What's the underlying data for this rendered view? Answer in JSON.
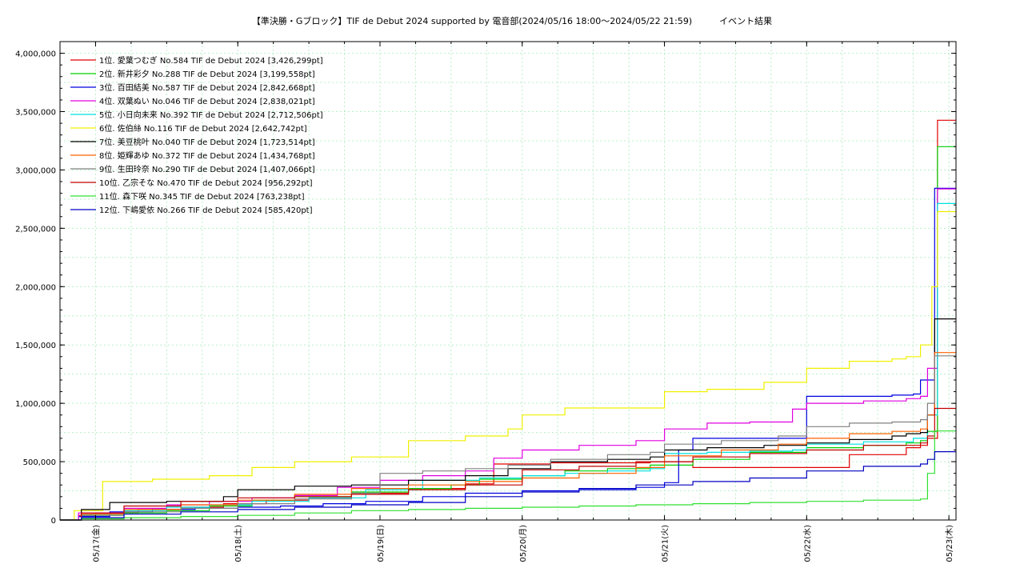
{
  "chart_data": {
    "type": "line",
    "title": "【準決勝・Gブロック】TIF de Debut 2024 supported by 電音部(2024/05/16 18:00〜2024/05/22 21:59)",
    "subtitle": "イベント結果",
    "xlabel": "",
    "ylabel": "",
    "xlim": [
      -0.25,
      6.05
    ],
    "ylim": [
      0,
      4100000
    ],
    "y_ticks": [
      0,
      500000,
      1000000,
      1500000,
      2000000,
      2500000,
      3000000,
      3500000,
      4000000
    ],
    "y_tick_labels": [
      "0",
      "500,000",
      "1,000,000",
      "1,500,000",
      "2,000,000",
      "2,500,000",
      "3,000,000",
      "3,500,000",
      "4,000,000"
    ],
    "x_ticks": [
      0,
      1,
      2,
      3,
      4,
      5,
      6
    ],
    "x_tick_labels": [
      "05/17(金)",
      "05/18(土)",
      "05/19(日)",
      "05/20(月)",
      "05/21(火)",
      "05/22(水)",
      "05/23(木)"
    ],
    "grid": true,
    "legend_position": "top-left",
    "series": [
      {
        "name": "1位. 愛葉つむぎ No.584 TIF de Debut 2024 [3,426,299pt]",
        "color": "#e00000",
        "x": [
          -0.25,
          -0.12,
          0.0,
          0.3,
          0.6,
          0.9,
          1.2,
          1.5,
          1.8,
          2.2,
          2.6,
          2.8,
          3.2,
          3.6,
          3.9,
          4.2,
          4.6,
          4.9,
          5.3,
          5.7,
          5.8,
          5.85,
          5.92,
          6.05
        ],
        "y": [
          0,
          40000,
          60000,
          90000,
          110000,
          140000,
          170000,
          190000,
          230000,
          270000,
          310000,
          480000,
          490000,
          490000,
          500000,
          450000,
          450000,
          450000,
          560000,
          620000,
          640000,
          700000,
          3426299,
          3426299
        ]
      },
      {
        "name": "2位. 新井彩夕 No.288 TIF de Debut 2024 [3,199,558pt]",
        "color": "#00d000",
        "x": [
          -0.25,
          -0.1,
          0.2,
          0.5,
          0.8,
          1.1,
          1.4,
          1.8,
          2.2,
          2.5,
          2.7,
          3.0,
          3.3,
          3.6,
          3.9,
          4.2,
          4.6,
          5.0,
          5.4,
          5.7,
          5.8,
          5.85,
          5.92,
          6.05
        ],
        "y": [
          0,
          40000,
          60000,
          80000,
          120000,
          170000,
          200000,
          240000,
          270000,
          300000,
          350000,
          380000,
          420000,
          440000,
          470000,
          520000,
          580000,
          620000,
          640000,
          660000,
          680000,
          760000,
          3199558,
          3199558
        ]
      },
      {
        "name": "3位. 百田結美 No.587 TIF de Debut 2024 [2,842,668pt]",
        "color": "#0000e0",
        "x": [
          -0.25,
          -0.12,
          0.1,
          0.4,
          0.7,
          1.0,
          1.3,
          1.6,
          1.9,
          2.3,
          2.6,
          3.0,
          3.4,
          3.8,
          4.0,
          4.1,
          4.2,
          4.5,
          4.9,
          5.0,
          5.3,
          5.6,
          5.75,
          5.8,
          5.9,
          6.05
        ],
        "y": [
          0,
          30000,
          70000,
          90000,
          100000,
          110000,
          120000,
          140000,
          160000,
          200000,
          230000,
          250000,
          260000,
          280000,
          320000,
          600000,
          700000,
          700000,
          700000,
          1060000,
          1060000,
          1070000,
          1080000,
          1200000,
          2842668,
          2842668
        ]
      },
      {
        "name": "4位. 双葉ぬい No.046 TIF de Debut 2024 [2,838,021pt]",
        "color": "#e000e0",
        "x": [
          -0.25,
          -0.12,
          0.2,
          0.5,
          0.8,
          1.1,
          1.4,
          1.7,
          2.0,
          2.3,
          2.6,
          2.8,
          3.0,
          3.4,
          3.8,
          4.0,
          4.3,
          4.6,
          4.9,
          5.0,
          5.4,
          5.7,
          5.8,
          5.85,
          5.92,
          6.05
        ],
        "y": [
          0,
          60000,
          100000,
          130000,
          160000,
          190000,
          210000,
          280000,
          340000,
          380000,
          420000,
          530000,
          600000,
          640000,
          680000,
          780000,
          830000,
          840000,
          950000,
          1000000,
          1020000,
          1040000,
          1060000,
          1300000,
          2838021,
          2838021
        ]
      },
      {
        "name": "5位. 小日向未来 No.392 TIF de Debut 2024 [2,712,506pt]",
        "color": "#00e0e0",
        "x": [
          -0.25,
          -0.1,
          0.2,
          0.5,
          0.8,
          1.1,
          1.5,
          1.9,
          2.3,
          2.7,
          3.0,
          3.3,
          3.6,
          3.9,
          4.0,
          4.3,
          4.6,
          4.9,
          5.0,
          5.4,
          5.75,
          5.85,
          5.92,
          6.05
        ],
        "y": [
          0,
          50000,
          80000,
          110000,
          130000,
          160000,
          190000,
          260000,
          340000,
          360000,
          380000,
          400000,
          420000,
          440000,
          570000,
          580000,
          590000,
          600000,
          650000,
          670000,
          700000,
          900000,
          2712506,
          2712506
        ]
      },
      {
        "name": "6位. 佐伯絲 No.116 TIF de Debut 2024 [2,642,742pt]",
        "color": "#f0f000",
        "x": [
          -0.25,
          -0.15,
          0.05,
          0.4,
          0.8,
          1.1,
          1.4,
          1.8,
          2.2,
          2.6,
          2.9,
          3.0,
          3.3,
          3.7,
          4.0,
          4.3,
          4.7,
          5.0,
          5.3,
          5.6,
          5.7,
          5.8,
          5.88,
          5.92,
          6.05
        ],
        "y": [
          0,
          80000,
          330000,
          350000,
          380000,
          450000,
          500000,
          540000,
          680000,
          720000,
          780000,
          900000,
          960000,
          960000,
          1100000,
          1120000,
          1180000,
          1300000,
          1360000,
          1380000,
          1400000,
          1500000,
          2000000,
          2642742,
          2642742
        ]
      },
      {
        "name": "7位. 美豆桃叶 No.040 TIF de Debut 2024 [1,723,514pt]",
        "color": "#000000",
        "x": [
          -0.25,
          -0.1,
          0.1,
          0.5,
          0.9,
          1.0,
          1.4,
          1.8,
          2.2,
          2.6,
          2.9,
          3.2,
          3.6,
          3.9,
          4.0,
          4.3,
          4.7,
          5.0,
          5.3,
          5.6,
          5.7,
          5.8,
          5.85,
          5.9,
          6.05
        ],
        "y": [
          0,
          90000,
          150000,
          160000,
          200000,
          260000,
          290000,
          300000,
          340000,
          380000,
          440000,
          500000,
          520000,
          540000,
          600000,
          620000,
          640000,
          660000,
          690000,
          720000,
          740000,
          750000,
          900000,
          1723514,
          1723514
        ]
      },
      {
        "name": "8位. 姫輝あゆ No.372 TIF de Debut 2024 [1,434,768pt]",
        "color": "#ff6000",
        "x": [
          -0.25,
          -0.1,
          0.2,
          0.6,
          1.0,
          1.4,
          1.8,
          2.2,
          2.6,
          3.0,
          3.4,
          3.8,
          4.0,
          4.4,
          4.8,
          5.0,
          5.3,
          5.6,
          5.8,
          5.85,
          5.9,
          6.05
        ],
        "y": [
          0,
          50000,
          90000,
          130000,
          170000,
          220000,
          270000,
          300000,
          330000,
          360000,
          400000,
          450000,
          550000,
          600000,
          650000,
          700000,
          740000,
          760000,
          780000,
          900000,
          1434768,
          1434768
        ]
      },
      {
        "name": "9位. 生田玲奈 No.290 TIF de Debut 2024 [1,407,066pt]",
        "color": "#808080",
        "x": [
          -0.25,
          -0.1,
          0.2,
          0.6,
          1.0,
          1.4,
          1.8,
          2.0,
          2.3,
          2.6,
          2.9,
          3.2,
          3.6,
          3.9,
          4.0,
          4.4,
          4.8,
          5.0,
          5.3,
          5.6,
          5.8,
          5.85,
          5.9,
          6.05
        ],
        "y": [
          0,
          40000,
          70000,
          100000,
          140000,
          180000,
          230000,
          400000,
          420000,
          440000,
          470000,
          520000,
          560000,
          580000,
          650000,
          680000,
          720000,
          800000,
          830000,
          840000,
          860000,
          1000000,
          1407066,
          1407066
        ]
      },
      {
        "name": "10位. 乙宗そな No.470 TIF de Debut 2024 [956,292pt]",
        "color": "#c00000",
        "x": [
          -0.25,
          -0.1,
          0.2,
          0.6,
          1.0,
          1.4,
          1.8,
          2.2,
          2.6,
          3.0,
          3.4,
          3.8,
          4.2,
          4.6,
          5.0,
          5.4,
          5.8,
          5.85,
          5.9,
          6.05
        ],
        "y": [
          0,
          60000,
          120000,
          160000,
          190000,
          200000,
          220000,
          260000,
          300000,
          430000,
          460000,
          500000,
          540000,
          570000,
          600000,
          640000,
          660000,
          720000,
          956292,
          956292
        ]
      },
      {
        "name": "11位. 森下咲 No.345 TIF de Debut 2024 [763,238pt]",
        "color": "#30e030",
        "x": [
          -0.25,
          -0.1,
          0.2,
          0.6,
          1.0,
          1.4,
          1.8,
          2.2,
          2.6,
          3.0,
          3.4,
          3.8,
          4.2,
          4.6,
          5.0,
          5.4,
          5.8,
          5.85,
          5.9,
          6.05
        ],
        "y": [
          0,
          10000,
          20000,
          30000,
          40000,
          60000,
          80000,
          90000,
          100000,
          110000,
          120000,
          130000,
          140000,
          150000,
          160000,
          170000,
          180000,
          400000,
          763238,
          763238
        ]
      },
      {
        "name": "12位. 下嶋愛依 No.266 TIF de Debut 2024 [585,420pt]",
        "color": "#0000c0",
        "x": [
          -0.25,
          -0.1,
          0.2,
          0.6,
          1.0,
          1.4,
          1.8,
          2.2,
          2.6,
          3.0,
          3.4,
          3.8,
          4.2,
          4.6,
          5.0,
          5.4,
          5.8,
          5.85,
          5.9,
          6.05
        ],
        "y": [
          0,
          20000,
          50000,
          70000,
          90000,
          110000,
          130000,
          150000,
          200000,
          240000,
          270000,
          300000,
          330000,
          360000,
          420000,
          460000,
          480000,
          520000,
          585420,
          585420
        ]
      }
    ]
  }
}
